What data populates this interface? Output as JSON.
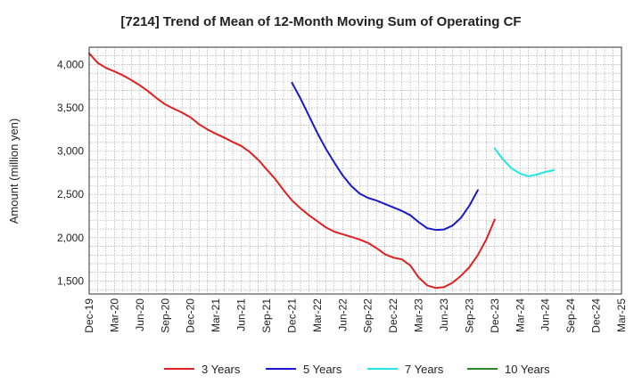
{
  "chart_data": {
    "type": "line",
    "title": "[7214]  Trend of Mean of 12-Month Moving Sum of Operating CF",
    "xlabel": "",
    "ylabel": "Amount (million yen)",
    "ylim": [
      1350,
      4200
    ],
    "yticks": [
      1500,
      2000,
      2500,
      3000,
      3500,
      4000
    ],
    "ytick_labels": [
      "1,500",
      "2,000",
      "2,500",
      "3,000",
      "3,500",
      "4,000"
    ],
    "x_categories": [
      "Dec-19",
      "Mar-20",
      "Jun-20",
      "Sep-20",
      "Dec-20",
      "Mar-21",
      "Jun-21",
      "Sep-21",
      "Dec-21",
      "Mar-22",
      "Jun-22",
      "Sep-22",
      "Dec-22",
      "Mar-23",
      "Jun-23",
      "Sep-23",
      "Dec-23",
      "Mar-24",
      "Jun-24",
      "Sep-24",
      "Dec-24",
      "Mar-25"
    ],
    "grid": true,
    "legend_position": "bottom",
    "series": [
      {
        "name": "3 Years",
        "color": "#e02020",
        "start_index": 0,
        "values": [
          4130,
          4020,
          3960,
          3920,
          3875,
          3820,
          3760,
          3690,
          3610,
          3540,
          3490,
          3445,
          3390,
          3310,
          3250,
          3200,
          3155,
          3105,
          3060,
          2990,
          2900,
          2790,
          2680,
          2550,
          2430,
          2340,
          2260,
          2190,
          2120,
          2070,
          2040,
          2010,
          1980,
          1940,
          1880,
          1810,
          1770,
          1750,
          1680,
          1540,
          1450,
          1420,
          1430,
          1480,
          1560,
          1660,
          1800,
          1980,
          2210
        ]
      },
      {
        "name": "5 Years",
        "color": "#1a1acc",
        "start_index": 24,
        "values": [
          3790,
          3610,
          3410,
          3210,
          3030,
          2870,
          2720,
          2600,
          2510,
          2460,
          2430,
          2390,
          2350,
          2310,
          2260,
          2180,
          2110,
          2090,
          2095,
          2140,
          2230,
          2370,
          2550
        ]
      },
      {
        "name": "7 Years",
        "color": "#22e5e5",
        "start_index": 48,
        "values": [
          3030,
          2900,
          2800,
          2740,
          2710,
          2730,
          2760,
          2780
        ]
      },
      {
        "name": "10 Years",
        "color": "#2a8a2a",
        "start_index": null,
        "values": []
      }
    ]
  }
}
